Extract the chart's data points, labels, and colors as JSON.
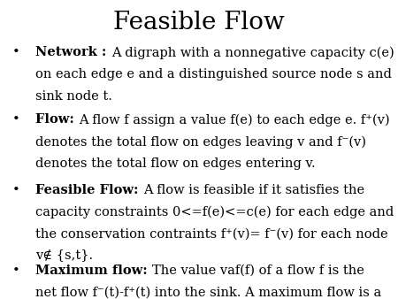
{
  "title": "Feasible Flow",
  "title_fontsize": 20,
  "background_color": "#ffffff",
  "text_color": "#000000",
  "bullet_items": [
    {
      "bold_part": "Network : ",
      "normal_part": "A digraph with a nonnegative capacity c(e)\non each edge e and a distinguished source node s and\nsink node t."
    },
    {
      "bold_part": "Flow: ",
      "normal_part": "A flow f assign a value f(e) to each edge e. f⁺(v)\ndenotes the total flow on edges leaving v and f⁻(v)\ndenotes the total flow on edges entering v."
    },
    {
      "bold_part": "Feasible Flow: ",
      "normal_part": "A flow is feasible if it satisfies the\ncapacity constraints 0<=f(e)<=c(e) for each edge and\nthe conservation contraints f⁺(v)= f⁻(v) for each node\nv∉ {s,t}."
    },
    {
      "bold_part": "Maximum flow: ",
      "normal_part": "The value vaf(f) of a flow f is the\nnet flow f⁻(t)-f⁺(t) into the sink. A maximum flow is a\nfeasible flow of maximum value."
    }
  ],
  "body_fontsize": 10.5,
  "font_family": "DejaVu Serif",
  "bullet_char": "•",
  "fig_width": 4.5,
  "fig_height": 3.38,
  "dpi": 100
}
